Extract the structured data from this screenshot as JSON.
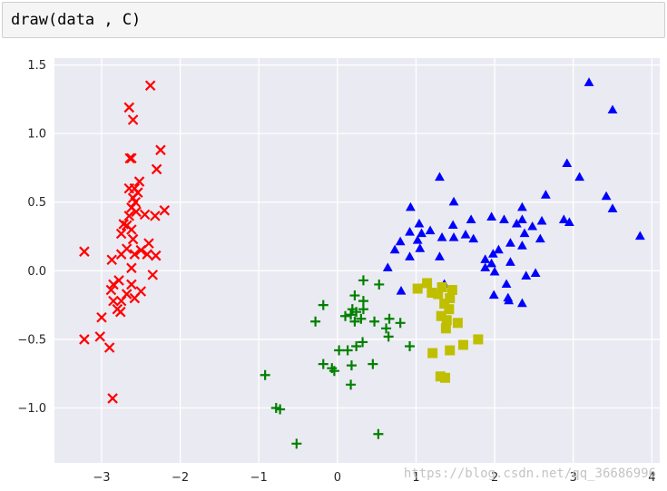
{
  "cell": {
    "code": "draw(data , C)"
  },
  "watermark": "https://blog.csdn.net/qq_36686996",
  "chart_data": {
    "type": "scatter",
    "title": "",
    "xlabel": "",
    "ylabel": "",
    "xlim": [
      -3.6,
      4.1
    ],
    "ylim": [
      -1.4,
      1.55
    ],
    "xticks": [
      -3,
      -2,
      -1,
      0,
      1,
      2,
      3,
      4
    ],
    "yticks": [
      -1.0,
      -0.5,
      0.0,
      0.5,
      1.0,
      1.5
    ],
    "xtick_labels": [
      "−3",
      "−2",
      "−1",
      "0",
      "1",
      "2",
      "3",
      "4"
    ],
    "ytick_labels": [
      "−1.0",
      "−0.5",
      "0.0",
      "0.5",
      "1.0",
      "1.5"
    ],
    "grid": true,
    "background": "#eaeaf2",
    "series": [
      {
        "marker": "x",
        "color": "#ff0000",
        "points": [
          [
            -2.38,
            1.35
          ],
          [
            -2.65,
            1.19
          ],
          [
            -2.6,
            1.1
          ],
          [
            -2.25,
            0.88
          ],
          [
            -2.64,
            0.82
          ],
          [
            -2.62,
            0.82
          ],
          [
            -2.3,
            0.74
          ],
          [
            -2.52,
            0.65
          ],
          [
            -2.58,
            0.6
          ],
          [
            -2.65,
            0.6
          ],
          [
            -2.54,
            0.57
          ],
          [
            -2.6,
            0.53
          ],
          [
            -2.57,
            0.5
          ],
          [
            -2.62,
            0.46
          ],
          [
            -2.56,
            0.43
          ],
          [
            -2.2,
            0.44
          ],
          [
            -2.65,
            0.4
          ],
          [
            -2.45,
            0.41
          ],
          [
            -2.32,
            0.4
          ],
          [
            -2.72,
            0.34
          ],
          [
            -2.68,
            0.33
          ],
          [
            -2.62,
            0.3
          ],
          [
            -2.75,
            0.27
          ],
          [
            -2.6,
            0.23
          ],
          [
            -2.4,
            0.2
          ],
          [
            -2.68,
            0.16
          ],
          [
            -2.5,
            0.15
          ],
          [
            -2.58,
            0.12
          ],
          [
            -2.42,
            0.12
          ],
          [
            -2.75,
            0.12
          ],
          [
            -3.22,
            0.14
          ],
          [
            -2.31,
            0.11
          ],
          [
            -2.87,
            0.08
          ],
          [
            -2.62,
            0.02
          ],
          [
            -2.35,
            -0.03
          ],
          [
            -2.78,
            -0.07
          ],
          [
            -2.62,
            -0.1
          ],
          [
            -2.85,
            -0.1
          ],
          [
            -2.5,
            -0.15
          ],
          [
            -2.88,
            -0.14
          ],
          [
            -2.68,
            -0.17
          ],
          [
            -2.58,
            -0.2
          ],
          [
            -2.85,
            -0.22
          ],
          [
            -2.75,
            -0.22
          ],
          [
            -2.8,
            -0.28
          ],
          [
            -2.76,
            -0.3
          ],
          [
            -3.0,
            -0.34
          ],
          [
            -3.22,
            -0.5
          ],
          [
            -3.02,
            -0.48
          ],
          [
            -2.9,
            -0.56
          ],
          [
            -2.86,
            -0.93
          ]
        ]
      },
      {
        "marker": "triangle",
        "color": "#0000ff",
        "points": [
          [
            3.2,
            1.37
          ],
          [
            3.5,
            1.17
          ],
          [
            2.92,
            0.78
          ],
          [
            1.3,
            0.68
          ],
          [
            3.08,
            0.68
          ],
          [
            2.65,
            0.55
          ],
          [
            3.42,
            0.54
          ],
          [
            1.48,
            0.5
          ],
          [
            2.35,
            0.46
          ],
          [
            0.93,
            0.46
          ],
          [
            3.5,
            0.45
          ],
          [
            1.96,
            0.39
          ],
          [
            1.7,
            0.37
          ],
          [
            2.35,
            0.37
          ],
          [
            2.12,
            0.37
          ],
          [
            2.88,
            0.37
          ],
          [
            2.6,
            0.36
          ],
          [
            2.95,
            0.35
          ],
          [
            2.28,
            0.34
          ],
          [
            1.47,
            0.33
          ],
          [
            2.48,
            0.32
          ],
          [
            1.04,
            0.34
          ],
          [
            0.92,
            0.28
          ],
          [
            1.07,
            0.27
          ],
          [
            1.18,
            0.29
          ],
          [
            2.38,
            0.27
          ],
          [
            1.63,
            0.26
          ],
          [
            1.48,
            0.24
          ],
          [
            1.33,
            0.24
          ],
          [
            1.73,
            0.23
          ],
          [
            2.58,
            0.23
          ],
          [
            3.85,
            0.25
          ],
          [
            0.8,
            0.21
          ],
          [
            1.02,
            0.22
          ],
          [
            2.2,
            0.2
          ],
          [
            1.05,
            0.16
          ],
          [
            0.73,
            0.15
          ],
          [
            2.05,
            0.15
          ],
          [
            2.35,
            0.18
          ],
          [
            1.98,
            0.12
          ],
          [
            0.92,
            0.1
          ],
          [
            1.88,
            0.08
          ],
          [
            1.3,
            0.1
          ],
          [
            2.2,
            0.06
          ],
          [
            0.64,
            0.02
          ],
          [
            1.96,
            0.05
          ],
          [
            1.88,
            0.02
          ],
          [
            2.0,
            -0.01
          ],
          [
            2.52,
            -0.02
          ],
          [
            2.4,
            -0.04
          ],
          [
            1.36,
            -0.1
          ],
          [
            2.15,
            -0.1
          ],
          [
            0.81,
            -0.15
          ],
          [
            1.99,
            -0.18
          ],
          [
            2.17,
            -0.2
          ],
          [
            2.18,
            -0.22
          ],
          [
            2.35,
            -0.24
          ]
        ]
      },
      {
        "marker": "plus",
        "color": "#008000",
        "points": [
          [
            0.33,
            -0.07
          ],
          [
            0.53,
            -0.1
          ],
          [
            0.22,
            -0.18
          ],
          [
            0.33,
            -0.22
          ],
          [
            -0.18,
            -0.25
          ],
          [
            0.19,
            -0.28
          ],
          [
            0.24,
            -0.3
          ],
          [
            0.33,
            -0.28
          ],
          [
            0.17,
            -0.32
          ],
          [
            0.3,
            -0.35
          ],
          [
            0.1,
            -0.33
          ],
          [
            0.22,
            -0.37
          ],
          [
            0.66,
            -0.35
          ],
          [
            -0.28,
            -0.37
          ],
          [
            0.47,
            -0.37
          ],
          [
            0.8,
            -0.38
          ],
          [
            0.62,
            -0.42
          ],
          [
            0.65,
            -0.48
          ],
          [
            0.32,
            -0.52
          ],
          [
            0.24,
            -0.55
          ],
          [
            0.92,
            -0.55
          ],
          [
            0.13,
            -0.58
          ],
          [
            0.02,
            -0.58
          ],
          [
            0.45,
            -0.68
          ],
          [
            -0.18,
            -0.68
          ],
          [
            0.18,
            -0.69
          ],
          [
            -0.07,
            -0.71
          ],
          [
            -0.04,
            -0.73
          ],
          [
            -0.92,
            -0.76
          ],
          [
            0.17,
            -0.83
          ],
          [
            -0.78,
            -1.0
          ],
          [
            -0.73,
            -1.01
          ],
          [
            0.52,
            -1.19
          ],
          [
            -0.52,
            -1.26
          ]
        ]
      },
      {
        "marker": "square",
        "color": "#bfbf00",
        "points": [
          [
            1.14,
            -0.09
          ],
          [
            1.33,
            -0.12
          ],
          [
            1.46,
            -0.14
          ],
          [
            1.02,
            -0.13
          ],
          [
            1.2,
            -0.16
          ],
          [
            1.28,
            -0.17
          ],
          [
            1.43,
            -0.2
          ],
          [
            1.36,
            -0.24
          ],
          [
            1.42,
            -0.28
          ],
          [
            1.32,
            -0.33
          ],
          [
            1.39,
            -0.36
          ],
          [
            1.53,
            -0.38
          ],
          [
            1.38,
            -0.42
          ],
          [
            1.79,
            -0.5
          ],
          [
            1.6,
            -0.54
          ],
          [
            1.43,
            -0.58
          ],
          [
            1.21,
            -0.6
          ],
          [
            1.31,
            -0.77
          ],
          [
            1.37,
            -0.78
          ]
        ]
      }
    ]
  }
}
